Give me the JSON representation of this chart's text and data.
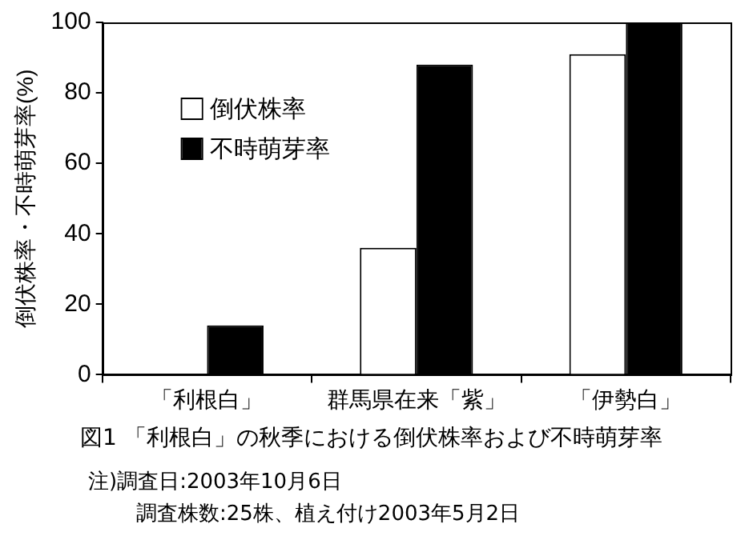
{
  "chart_data": {
    "type": "bar",
    "title": "図1 「利根白」の秋季における倒伏株率および不時萌芽率",
    "ylabel": "倒伏株率・不時萌芽率(%)",
    "categories": [
      "「利根白」",
      "群馬県在来「紫」",
      "「伊勢白」"
    ],
    "series": [
      {
        "name": "倒伏株率",
        "color": "#ffffff",
        "values": [
          0,
          36,
          91
        ]
      },
      {
        "name": "不時萌芽率",
        "color": "#000000",
        "values": [
          14,
          88,
          100
        ]
      }
    ],
    "ylim": [
      0,
      100
    ],
    "yticks": [
      0,
      20,
      40,
      60,
      80,
      100
    ],
    "grid": false,
    "legend": "top left",
    "annotations": [
      "注)調査日:2003年10月6日",
      "調査株数:25株、植え付け2003年5月2日"
    ]
  }
}
